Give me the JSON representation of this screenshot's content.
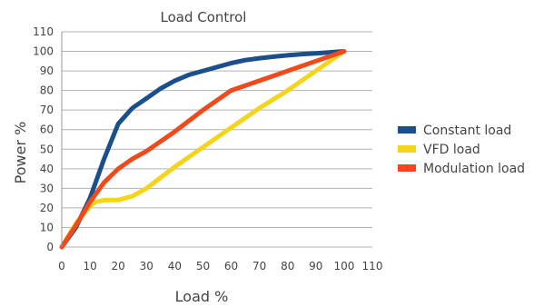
{
  "chart_data": {
    "type": "line",
    "title": "Load Control",
    "xlabel": "Load %",
    "ylabel": "Power %",
    "xlim": [
      0,
      110
    ],
    "ylim": [
      0,
      110
    ],
    "xticks": [
      0,
      10,
      20,
      30,
      40,
      50,
      60,
      70,
      80,
      90,
      100,
      110
    ],
    "yticks": [
      0,
      10,
      20,
      30,
      40,
      50,
      60,
      70,
      80,
      90,
      100,
      110
    ],
    "grid": "horizontal",
    "legend_position": "right",
    "series": [
      {
        "name": "Constant load",
        "color": "#1a4f8c",
        "x": [
          0,
          5,
          10,
          15,
          20,
          25,
          30,
          35,
          40,
          45,
          50,
          55,
          60,
          65,
          70,
          75,
          80,
          85,
          90,
          95,
          100
        ],
        "y": [
          0,
          10,
          25,
          45,
          63,
          71,
          76,
          81,
          85,
          88,
          90,
          92,
          94,
          95.5,
          96.5,
          97.3,
          98,
          98.6,
          99,
          99.5,
          100
        ]
      },
      {
        "name": "VFD load",
        "color": "#f5d41c",
        "x": [
          0,
          5,
          10,
          12,
          15,
          20,
          25,
          30,
          40,
          50,
          60,
          70,
          80,
          90,
          100
        ],
        "y": [
          0,
          12,
          21,
          23,
          24,
          24,
          26,
          30,
          41,
          51,
          61,
          71,
          80,
          90,
          100
        ]
      },
      {
        "name": "Modulation load",
        "color": "#f04a1c",
        "x": [
          0,
          5,
          10,
          15,
          20,
          25,
          30,
          40,
          50,
          60,
          70,
          80,
          90,
          100
        ],
        "y": [
          0,
          11,
          23,
          33,
          40,
          45,
          49,
          59,
          70,
          80,
          85,
          90,
          95,
          100
        ]
      }
    ]
  }
}
